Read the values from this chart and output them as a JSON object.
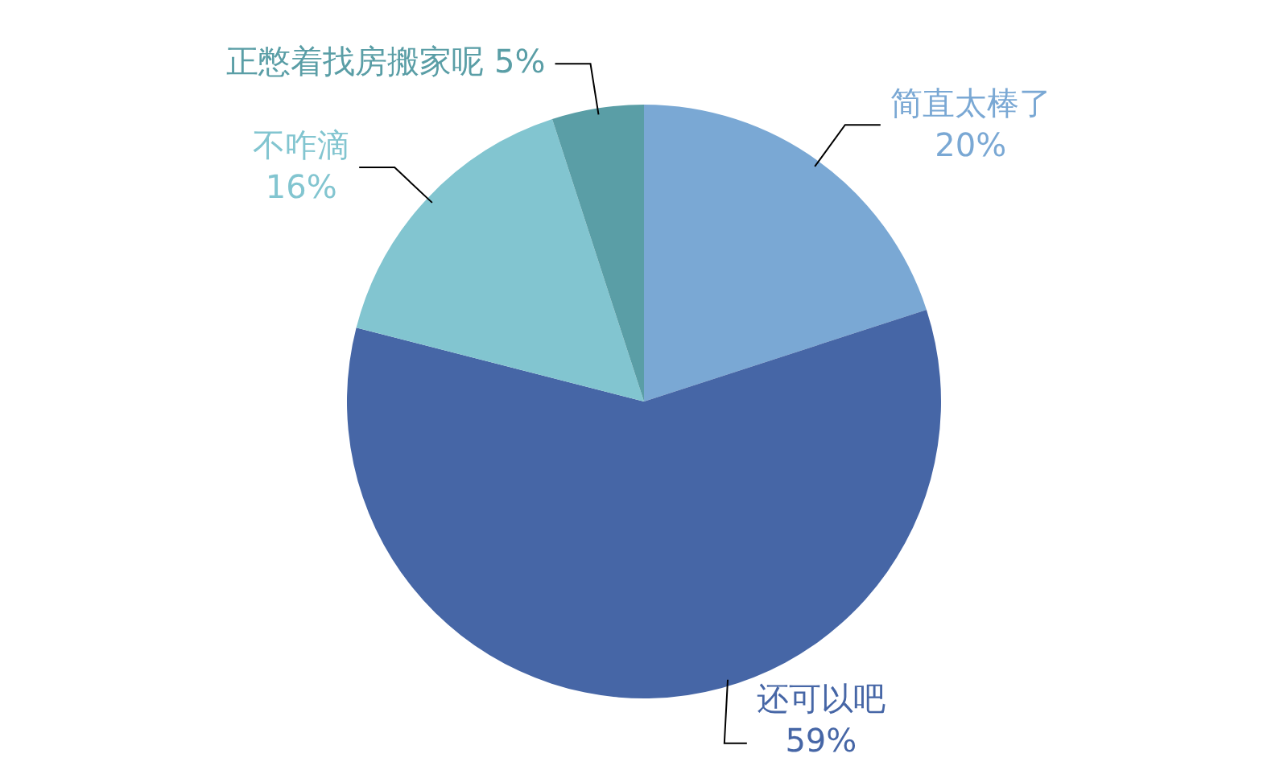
{
  "chart_data": {
    "type": "pie",
    "categories": [
      "简直太棒了",
      "还可以吧",
      "不咋滴",
      "正憋着找房搬家呢"
    ],
    "values": [
      20,
      59,
      16,
      5
    ],
    "value_labels": [
      "20%",
      "59%",
      "16%",
      "5%"
    ],
    "colors": [
      "#7aa8d4",
      "#4666a6",
      "#82c5d0",
      "#5a9ea6"
    ],
    "legend": false
  }
}
